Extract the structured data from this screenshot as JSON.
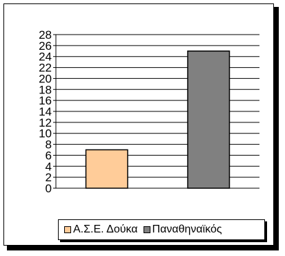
{
  "chart_data": {
    "type": "bar",
    "categories": [
      "Α.Σ.Ε. Δούκα",
      "Παναθηναϊκός"
    ],
    "values": [
      7,
      25
    ],
    "colors": [
      "#ffcc99",
      "#808080"
    ],
    "ylim": [
      0,
      28
    ],
    "yticks": [
      0,
      2,
      4,
      6,
      8,
      10,
      12,
      14,
      16,
      18,
      20,
      22,
      24,
      26,
      28
    ],
    "grid": true,
    "legend_position": "bottom-right"
  },
  "legend": {
    "items": [
      {
        "label": "Α.Σ.Ε. Δούκα",
        "color": "#ffcc99"
      },
      {
        "label": "Παναθηναϊκός",
        "color": "#808080"
      }
    ]
  }
}
